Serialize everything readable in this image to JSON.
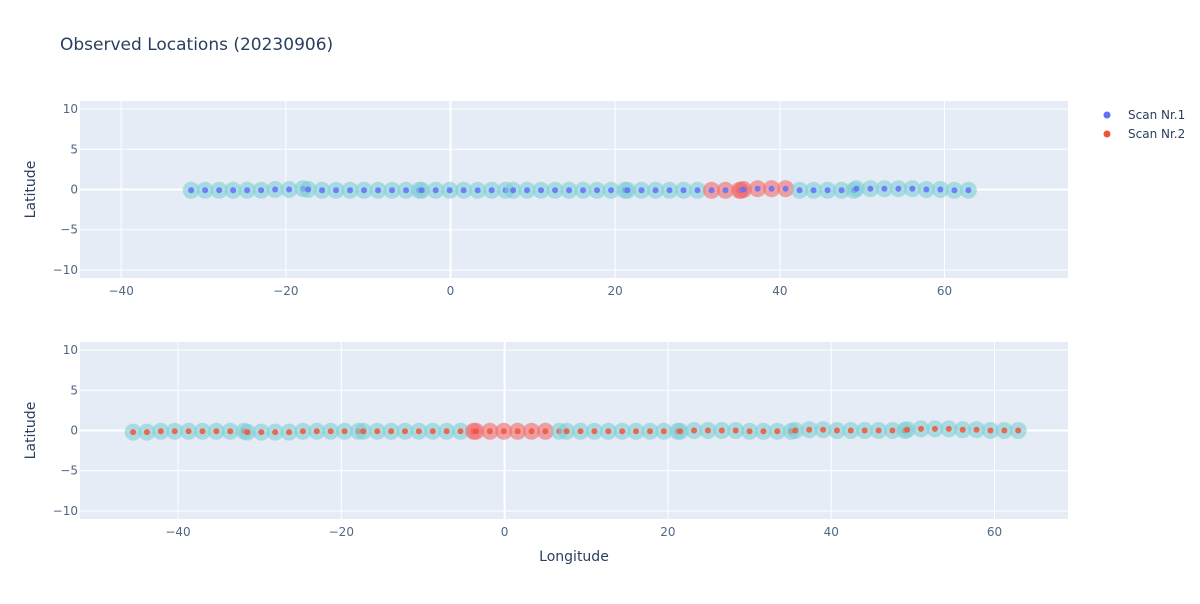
{
  "chart_data": {
    "type": "scatter",
    "title": "Observed Locations (20230906)",
    "legend": {
      "placement": "top-right",
      "entries": [
        {
          "name": "Scan Nr.1",
          "color": "#636efa"
        },
        {
          "name": "Scan Nr.2",
          "color": "#ef553b"
        }
      ]
    },
    "colors": {
      "plot_bg": "#e5ecf6",
      "grid": "#ffffff",
      "marker_halo": "#7ecfd6",
      "marker_halo_highlight": "#f26b6b",
      "scan1": "#636efa",
      "scan2": "#ef553b",
      "text": "#2a3f5f",
      "tick_text": "#506784"
    },
    "grid": true,
    "xlabel": "Longitude",
    "ylabel": "Latitude",
    "subplots": [
      {
        "xlim": [
          -45,
          75
        ],
        "ylim": [
          -11,
          11
        ],
        "xticks": [
          -40,
          -20,
          0,
          20,
          40,
          60
        ],
        "yticks": [
          -10,
          -5,
          0,
          5,
          10
        ],
        "series": [
          {
            "name": "Scan Nr.1",
            "color": "#636efa",
            "x": [
              -31.5,
              -29.8,
              -28.1,
              -26.4,
              -24.7,
              -23.0,
              -21.3,
              -19.6,
              -17.9,
              -17.3,
              -15.6,
              -13.9,
              -12.2,
              -10.5,
              -8.8,
              -7.1,
              -5.4,
              -3.8,
              -3.5,
              -1.8,
              -0.1,
              1.6,
              3.3,
              5.0,
              6.7,
              7.6,
              9.3,
              11.0,
              12.7,
              14.4,
              16.1,
              17.8,
              19.5,
              21.2,
              21.5,
              23.2,
              24.9,
              26.6,
              28.3,
              30.0,
              31.7,
              33.4,
              35.1,
              35.3,
              35.6,
              37.3,
              39.0,
              40.7,
              42.4,
              44.1,
              45.8,
              47.5,
              49.0,
              49.3,
              51.0,
              52.7,
              54.4,
              56.1,
              57.8,
              59.5,
              61.2,
              62.9
            ],
            "y": [
              -0.1,
              -0.1,
              -0.1,
              -0.1,
              -0.1,
              -0.1,
              0.0,
              0.0,
              0.1,
              0.0,
              -0.1,
              -0.1,
              -0.1,
              -0.1,
              -0.1,
              -0.1,
              -0.1,
              -0.1,
              -0.1,
              -0.1,
              -0.1,
              -0.1,
              -0.1,
              -0.1,
              -0.1,
              -0.1,
              -0.1,
              -0.1,
              -0.1,
              -0.1,
              -0.1,
              -0.1,
              -0.1,
              -0.1,
              -0.1,
              -0.1,
              -0.1,
              -0.1,
              -0.1,
              -0.1,
              -0.1,
              -0.1,
              -0.1,
              -0.1,
              0.0,
              0.1,
              0.1,
              0.1,
              -0.1,
              -0.1,
              -0.1,
              -0.1,
              -0.1,
              0.1,
              0.1,
              0.1,
              0.1,
              0.1,
              0.0,
              0.0,
              -0.1,
              -0.1
            ],
            "highlight": [
              false,
              false,
              false,
              false,
              false,
              false,
              false,
              false,
              false,
              false,
              false,
              false,
              false,
              false,
              false,
              false,
              false,
              false,
              false,
              false,
              false,
              false,
              false,
              false,
              false,
              false,
              false,
              false,
              false,
              false,
              false,
              false,
              false,
              false,
              false,
              false,
              false,
              false,
              false,
              false,
              true,
              true,
              true,
              true,
              true,
              true,
              true,
              true,
              false,
              false,
              false,
              false,
              false,
              false,
              false,
              false,
              false,
              false,
              false,
              false,
              false,
              false
            ]
          }
        ]
      },
      {
        "xlim": [
          -52,
          69
        ],
        "ylim": [
          -11,
          11
        ],
        "xticks": [
          -40,
          -20,
          0,
          20,
          40,
          60
        ],
        "yticks": [
          -10,
          -5,
          0,
          5,
          10
        ],
        "series": [
          {
            "name": "Scan Nr.2",
            "color": "#ef553b",
            "x": [
              -45.5,
              -43.8,
              -42.1,
              -40.4,
              -38.7,
              -37.0,
              -35.3,
              -33.6,
              -31.9,
              -31.5,
              -29.8,
              -28.1,
              -26.4,
              -24.7,
              -23.0,
              -21.3,
              -19.6,
              -17.9,
              -17.3,
              -15.6,
              -13.9,
              -12.2,
              -10.5,
              -8.8,
              -7.1,
              -5.4,
              -3.8,
              -3.5,
              -1.8,
              -0.1,
              1.6,
              3.3,
              5.0,
              6.7,
              7.6,
              9.3,
              11.0,
              12.7,
              14.4,
              16.1,
              17.8,
              19.5,
              21.2,
              21.5,
              23.2,
              24.9,
              26.6,
              28.3,
              30.0,
              31.7,
              33.4,
              35.1,
              35.6,
              37.3,
              39.0,
              40.7,
              42.4,
              44.1,
              45.8,
              47.5,
              49.0,
              49.3,
              51.0,
              52.7,
              54.4,
              56.1,
              57.8,
              59.5,
              61.2,
              62.9
            ],
            "y": [
              -0.2,
              -0.2,
              -0.1,
              -0.1,
              -0.1,
              -0.1,
              -0.1,
              -0.1,
              -0.1,
              -0.2,
              -0.2,
              -0.2,
              -0.2,
              -0.1,
              -0.1,
              -0.1,
              -0.1,
              -0.1,
              -0.1,
              -0.1,
              -0.1,
              -0.1,
              -0.1,
              -0.1,
              -0.1,
              -0.1,
              -0.1,
              -0.1,
              -0.1,
              -0.1,
              -0.1,
              -0.1,
              -0.1,
              -0.1,
              -0.1,
              -0.1,
              -0.1,
              -0.1,
              -0.1,
              -0.1,
              -0.1,
              -0.1,
              -0.1,
              -0.1,
              0.0,
              0.0,
              0.0,
              0.0,
              -0.1,
              -0.1,
              -0.1,
              -0.1,
              0.0,
              0.1,
              0.1,
              0.0,
              0.0,
              0.0,
              0.0,
              0.0,
              0.0,
              0.1,
              0.2,
              0.2,
              0.2,
              0.1,
              0.1,
              0.0,
              0.0,
              0.0
            ],
            "highlight": [
              false,
              false,
              false,
              false,
              false,
              false,
              false,
              false,
              false,
              false,
              false,
              false,
              false,
              false,
              false,
              false,
              false,
              false,
              false,
              false,
              false,
              false,
              false,
              false,
              false,
              false,
              true,
              true,
              true,
              true,
              true,
              true,
              true,
              false,
              false,
              false,
              false,
              false,
              false,
              false,
              false,
              false,
              false,
              false,
              false,
              false,
              false,
              false,
              false,
              false,
              false,
              false,
              false,
              false,
              false,
              false,
              false,
              false,
              false,
              false,
              false,
              false,
              false,
              false,
              false,
              false,
              false,
              false,
              false,
              false
            ]
          }
        ]
      }
    ]
  }
}
